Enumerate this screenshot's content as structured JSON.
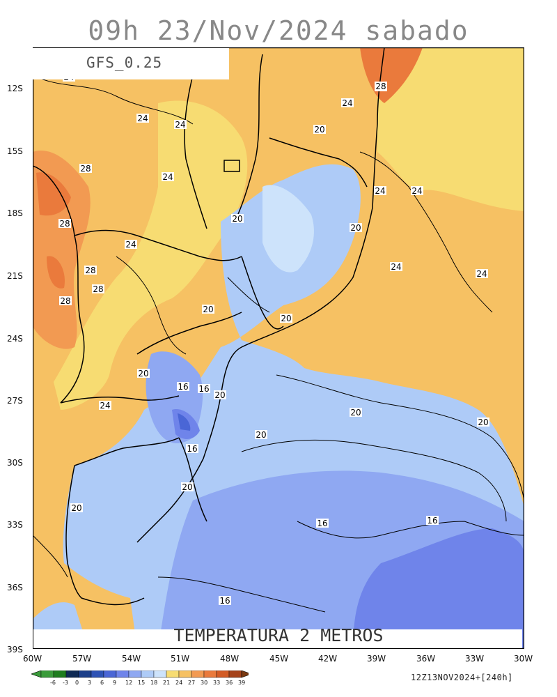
{
  "header": {
    "title": "09h 23/Nov/2024 sabado"
  },
  "map": {
    "model_label": "GFS_0.25",
    "variable_label": "TEMPERATURA 2 METROS",
    "run_label": "12Z13NOV2024+[240h]",
    "lat_ticks": [
      "12S",
      "15S",
      "18S",
      "21S",
      "24S",
      "27S",
      "30S",
      "33S",
      "36S",
      "39S"
    ],
    "lon_ticks": [
      "60W",
      "57W",
      "54W",
      "51W",
      "48W",
      "45W",
      "42W",
      "39W",
      "36W",
      "33W",
      "30W"
    ],
    "contour_labels": [
      {
        "text": "24"
      },
      {
        "text": "24"
      },
      {
        "text": "24"
      },
      {
        "text": "24"
      },
      {
        "text": "28"
      },
      {
        "text": "28"
      },
      {
        "text": "24"
      },
      {
        "text": "20"
      },
      {
        "text": "28"
      },
      {
        "text": "24"
      },
      {
        "text": "20"
      },
      {
        "text": "20"
      },
      {
        "text": "24"
      },
      {
        "text": "28"
      },
      {
        "text": "28"
      },
      {
        "text": "24"
      },
      {
        "text": "28"
      },
      {
        "text": "20"
      },
      {
        "text": "20"
      },
      {
        "text": "24"
      },
      {
        "text": "20"
      },
      {
        "text": "16"
      },
      {
        "text": "16"
      },
      {
        "text": "20"
      },
      {
        "text": "24"
      },
      {
        "text": "20"
      },
      {
        "text": "20"
      },
      {
        "text": "20"
      },
      {
        "text": "16"
      },
      {
        "text": "20"
      },
      {
        "text": "20"
      },
      {
        "text": "16"
      },
      {
        "text": "16"
      },
      {
        "text": "16"
      },
      {
        "text": "24"
      },
      {
        "text": "28"
      }
    ]
  },
  "colorbar": {
    "labels": [
      "-6",
      "-3",
      "0",
      "3",
      "6",
      "9",
      "12",
      "15",
      "18",
      "21",
      "24",
      "27",
      "30",
      "33",
      "36",
      "39"
    ],
    "colors": [
      "#3a9b3a",
      "#1e7d1e",
      "#0f2a55",
      "#1c3f8a",
      "#2d52b5",
      "#4a66d6",
      "#6f84ea",
      "#8fa8f2",
      "#aecbf7",
      "#cde3fb",
      "#f7dc72",
      "#f6c163",
      "#f29a52",
      "#ea7a3c",
      "#d35b25",
      "#a6431b"
    ]
  }
}
